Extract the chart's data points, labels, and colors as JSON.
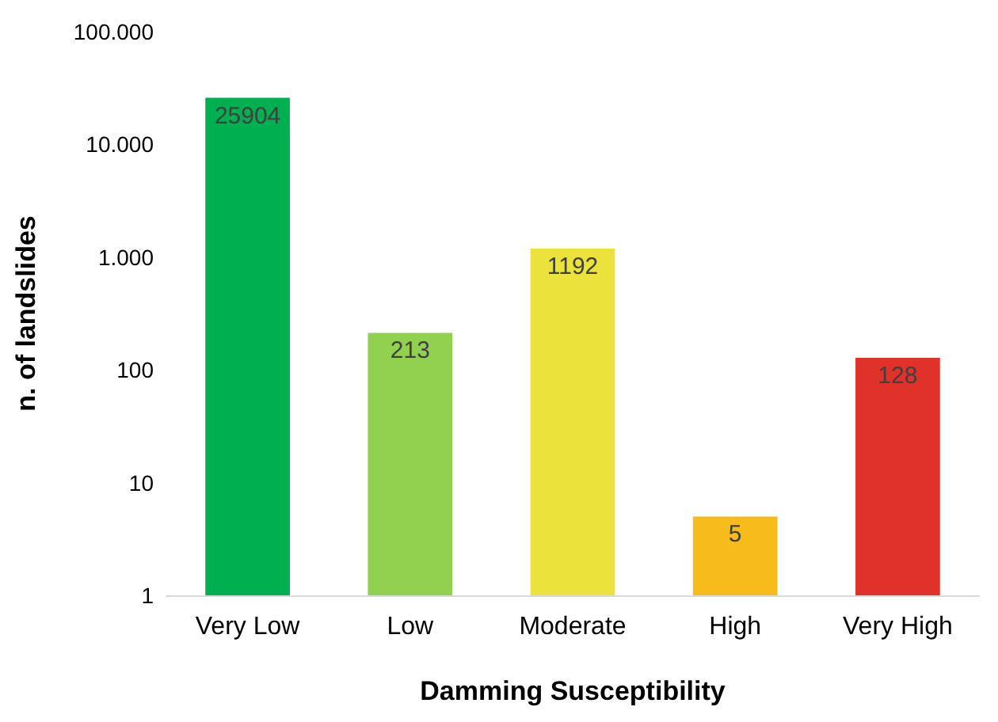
{
  "chart_data": {
    "type": "bar",
    "xlabel": "Damming Susceptibility",
    "ylabel": "n. of landslides",
    "categories": [
      "Very Low",
      "Low",
      "Moderate",
      "High",
      "Very High"
    ],
    "values": [
      25904,
      213,
      1192,
      5,
      128
    ],
    "colors": [
      "#00b050",
      "#92d050",
      "#ebe33b",
      "#f7bb1c",
      "#e0322a"
    ],
    "log": "y",
    "ylim": [
      1,
      100000
    ],
    "yticks": [
      1,
      10,
      100,
      {
        "value": 1000,
        "label": "1.000"
      },
      {
        "value": 10000,
        "label": "10.000"
      },
      {
        "value": 100000,
        "label": "100.000"
      }
    ],
    "grid": false,
    "data_labels": true
  }
}
